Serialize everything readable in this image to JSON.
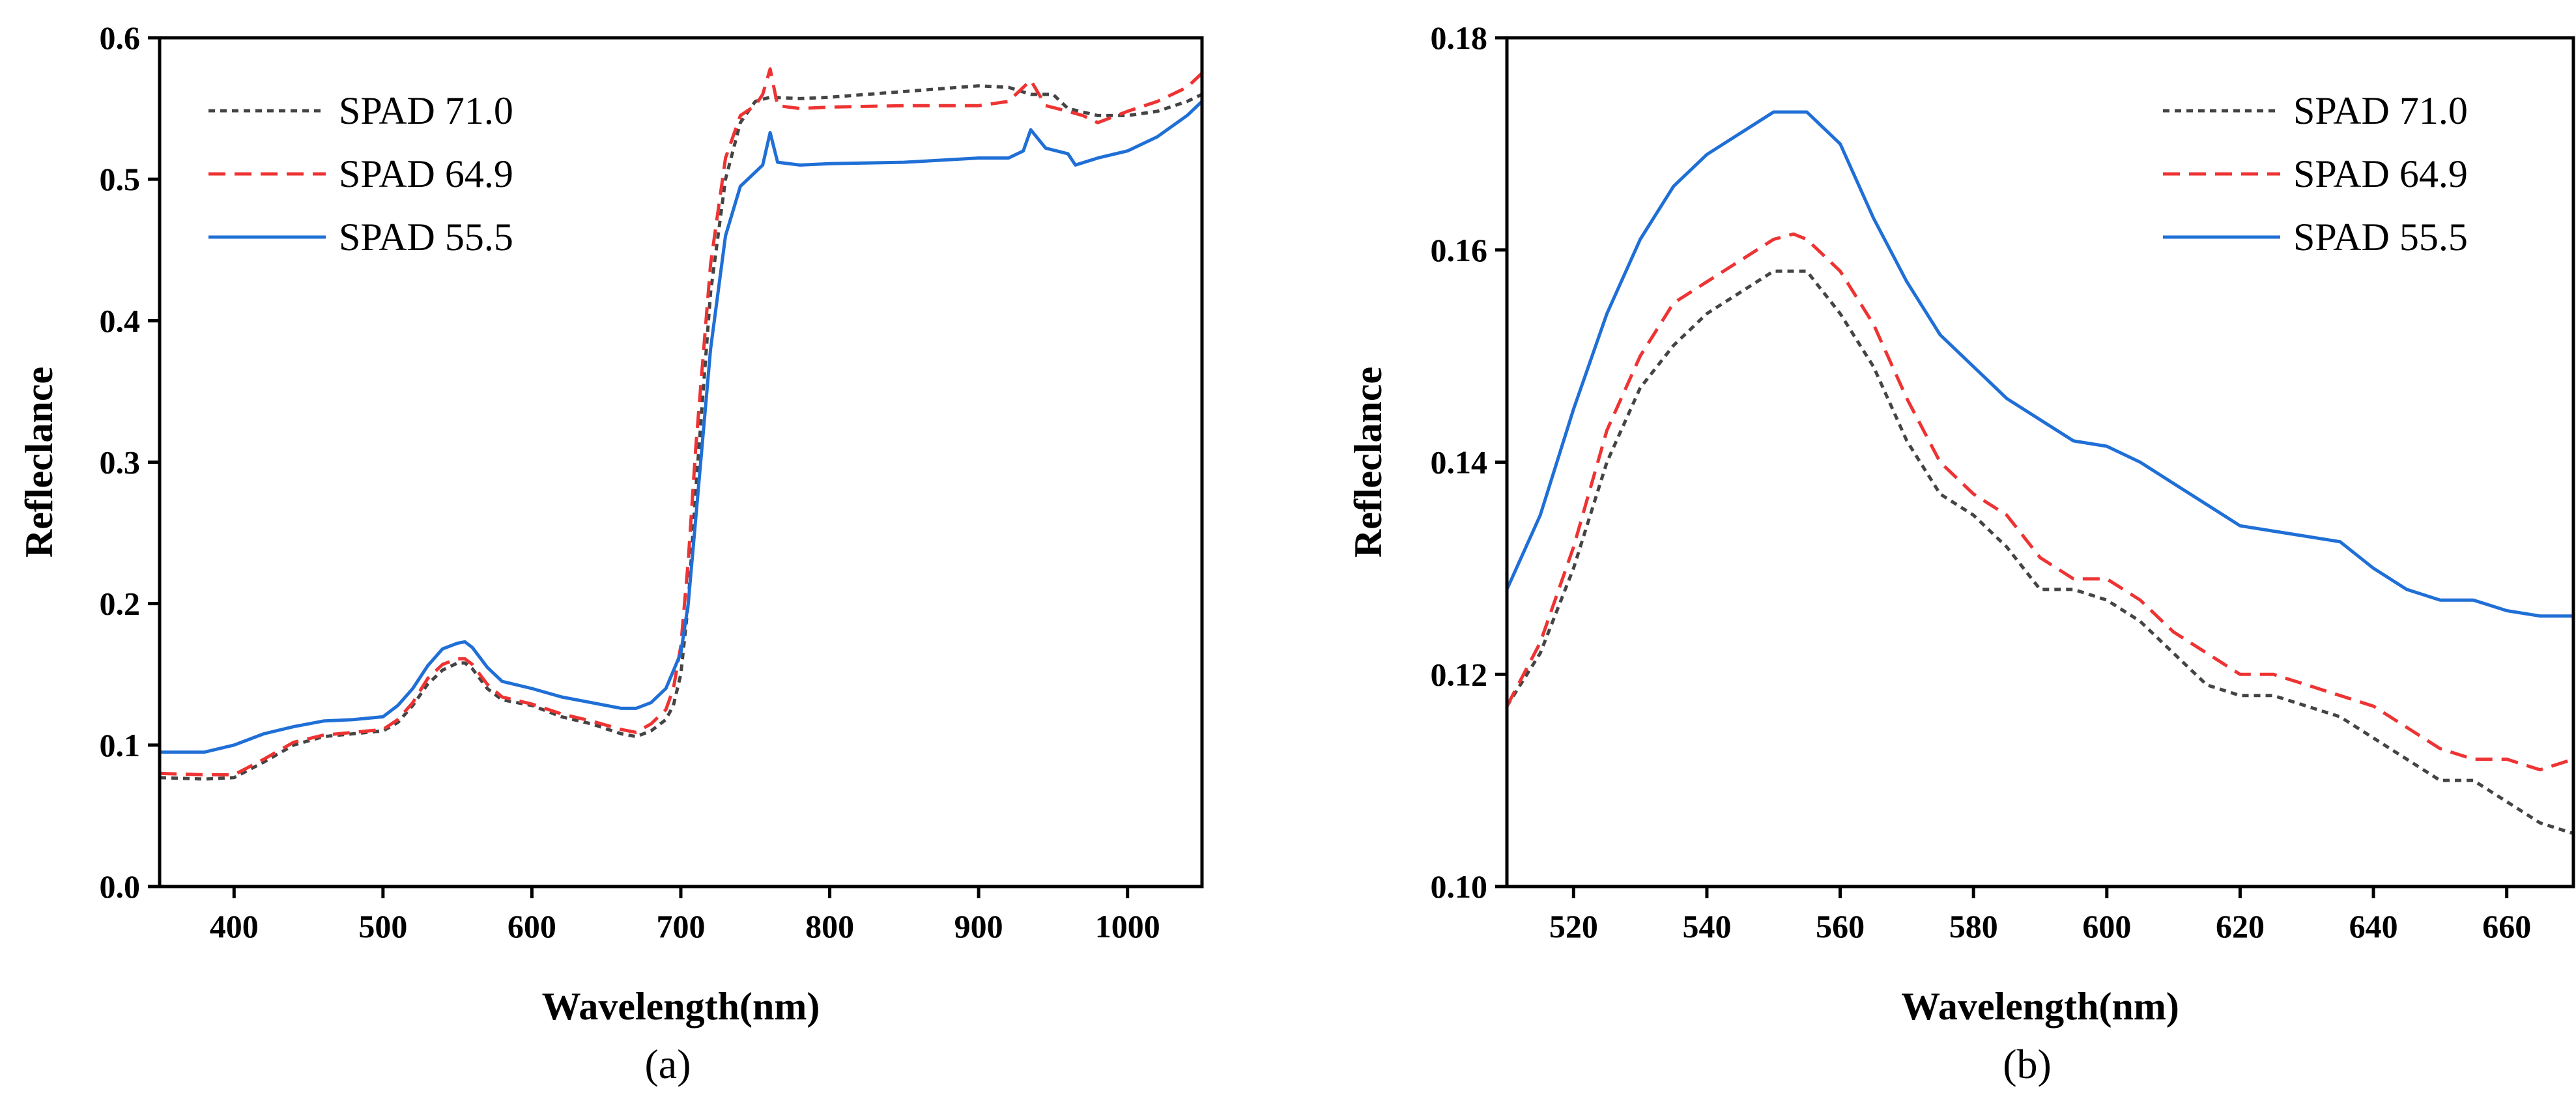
{
  "chart_data": [
    {
      "type": "line",
      "panel_label": "(a)",
      "xlabel": "Wavelength(nm)",
      "ylabel": "Refleclance",
      "xlim": [
        350,
        1050
      ],
      "ylim": [
        0.0,
        0.6
      ],
      "xticks": [
        400,
        500,
        600,
        700,
        800,
        900,
        1000
      ],
      "yticks": [
        "0.0",
        "0.1",
        "0.2",
        "0.3",
        "0.4",
        "0.5",
        "0.6"
      ],
      "legend_position": "top-left",
      "series": [
        {
          "name": "SPAD 71.0",
          "color": "#444444",
          "style": "dotted",
          "x": [
            350,
            380,
            400,
            420,
            440,
            460,
            480,
            500,
            510,
            520,
            530,
            540,
            550,
            555,
            560,
            570,
            580,
            600,
            620,
            640,
            660,
            670,
            680,
            690,
            695,
            700,
            705,
            710,
            720,
            730,
            740,
            750,
            760,
            780,
            800,
            850,
            900,
            920,
            935,
            950,
            960,
            980,
            1000,
            1020,
            1040,
            1050
          ],
          "y": [
            0.077,
            0.076,
            0.077,
            0.088,
            0.1,
            0.106,
            0.108,
            0.11,
            0.116,
            0.128,
            0.143,
            0.153,
            0.158,
            0.158,
            0.154,
            0.14,
            0.132,
            0.128,
            0.12,
            0.115,
            0.108,
            0.106,
            0.11,
            0.118,
            0.128,
            0.15,
            0.2,
            0.28,
            0.42,
            0.5,
            0.54,
            0.555,
            0.558,
            0.557,
            0.558,
            0.562,
            0.566,
            0.565,
            0.56,
            0.56,
            0.55,
            0.545,
            0.545,
            0.548,
            0.555,
            0.56
          ]
        },
        {
          "name": "SPAD 64.9",
          "color": "#ee3333",
          "style": "dashed",
          "x": [
            350,
            380,
            400,
            420,
            440,
            460,
            480,
            500,
            510,
            520,
            530,
            540,
            550,
            555,
            560,
            570,
            580,
            600,
            620,
            640,
            660,
            670,
            680,
            690,
            695,
            700,
            705,
            710,
            720,
            730,
            740,
            750,
            755,
            760,
            765,
            780,
            800,
            850,
            900,
            920,
            935,
            945,
            960,
            970,
            980,
            1000,
            1020,
            1040,
            1050
          ],
          "y": [
            0.08,
            0.079,
            0.079,
            0.09,
            0.102,
            0.107,
            0.109,
            0.111,
            0.118,
            0.13,
            0.147,
            0.157,
            0.161,
            0.161,
            0.157,
            0.143,
            0.134,
            0.129,
            0.122,
            0.117,
            0.111,
            0.109,
            0.115,
            0.125,
            0.14,
            0.17,
            0.23,
            0.31,
            0.44,
            0.515,
            0.545,
            0.552,
            0.56,
            0.578,
            0.552,
            0.55,
            0.551,
            0.552,
            0.552,
            0.555,
            0.57,
            0.552,
            0.548,
            0.545,
            0.54,
            0.548,
            0.555,
            0.565,
            0.575
          ]
        },
        {
          "name": "SPAD 55.5",
          "color": "#1f6fd6",
          "style": "solid",
          "x": [
            350,
            380,
            400,
            420,
            440,
            460,
            480,
            500,
            510,
            520,
            530,
            540,
            550,
            555,
            560,
            570,
            580,
            600,
            620,
            640,
            660,
            670,
            680,
            690,
            700,
            705,
            710,
            720,
            730,
            740,
            750,
            755,
            760,
            765,
            780,
            800,
            850,
            900,
            920,
            930,
            935,
            945,
            960,
            965,
            980,
            1000,
            1020,
            1040,
            1050
          ],
          "y": [
            0.095,
            0.095,
            0.1,
            0.108,
            0.113,
            0.117,
            0.118,
            0.12,
            0.128,
            0.14,
            0.156,
            0.168,
            0.172,
            0.173,
            0.169,
            0.155,
            0.145,
            0.14,
            0.134,
            0.13,
            0.126,
            0.126,
            0.13,
            0.14,
            0.165,
            0.2,
            0.26,
            0.38,
            0.46,
            0.495,
            0.505,
            0.51,
            0.533,
            0.512,
            0.51,
            0.511,
            0.512,
            0.515,
            0.515,
            0.52,
            0.535,
            0.522,
            0.518,
            0.51,
            0.515,
            0.52,
            0.53,
            0.545,
            0.555
          ]
        }
      ]
    },
    {
      "type": "line",
      "panel_label": "(b)",
      "xlabel": "Wavelength(nm)",
      "ylabel": "Refleclance",
      "xlim": [
        510,
        670
      ],
      "ylim": [
        0.1,
        0.18
      ],
      "xticks": [
        520,
        540,
        560,
        580,
        600,
        620,
        640,
        660
      ],
      "yticks": [
        "0.10",
        "0.12",
        "0.14",
        "0.16",
        "0.18"
      ],
      "legend_position": "top-right",
      "series": [
        {
          "name": "SPAD 71.0",
          "color": "#444444",
          "style": "dotted",
          "x": [
            510,
            515,
            520,
            525,
            530,
            535,
            540,
            545,
            550,
            553,
            555,
            560,
            565,
            570,
            575,
            580,
            585,
            590,
            595,
            600,
            605,
            610,
            615,
            620,
            625,
            630,
            635,
            640,
            645,
            650,
            655,
            660,
            665,
            670
          ],
          "y": [
            0.117,
            0.122,
            0.13,
            0.14,
            0.147,
            0.151,
            0.154,
            0.156,
            0.158,
            0.158,
            0.158,
            0.154,
            0.149,
            0.142,
            0.137,
            0.135,
            0.132,
            0.128,
            0.128,
            0.127,
            0.125,
            0.122,
            0.119,
            0.118,
            0.118,
            0.117,
            0.116,
            0.114,
            0.112,
            0.11,
            0.11,
            0.108,
            0.106,
            0.105
          ]
        },
        {
          "name": "SPAD 64.9",
          "color": "#ee3333",
          "style": "dashed",
          "x": [
            510,
            515,
            520,
            525,
            530,
            535,
            540,
            545,
            550,
            553,
            555,
            560,
            565,
            570,
            575,
            580,
            585,
            590,
            595,
            600,
            605,
            610,
            615,
            620,
            625,
            630,
            635,
            640,
            645,
            650,
            655,
            660,
            665,
            670
          ],
          "y": [
            0.117,
            0.123,
            0.132,
            0.143,
            0.15,
            0.155,
            0.157,
            0.159,
            0.161,
            0.1615,
            0.161,
            0.158,
            0.153,
            0.146,
            0.14,
            0.137,
            0.135,
            0.131,
            0.129,
            0.129,
            0.127,
            0.124,
            0.122,
            0.12,
            0.12,
            0.119,
            0.118,
            0.117,
            0.115,
            0.113,
            0.112,
            0.112,
            0.111,
            0.112
          ]
        },
        {
          "name": "SPAD 55.5",
          "color": "#1f6fd6",
          "style": "solid",
          "x": [
            510,
            515,
            520,
            525,
            530,
            535,
            540,
            545,
            550,
            555,
            560,
            565,
            570,
            575,
            580,
            585,
            590,
            595,
            600,
            605,
            610,
            615,
            620,
            625,
            630,
            635,
            640,
            645,
            650,
            655,
            660,
            665,
            670
          ],
          "y": [
            0.128,
            0.135,
            0.145,
            0.154,
            0.161,
            0.166,
            0.169,
            0.171,
            0.173,
            0.173,
            0.17,
            0.163,
            0.157,
            0.152,
            0.149,
            0.146,
            0.144,
            0.142,
            0.1415,
            0.14,
            0.138,
            0.136,
            0.134,
            0.1335,
            0.133,
            0.1325,
            0.13,
            0.128,
            0.127,
            0.127,
            0.126,
            0.1255,
            0.1255
          ]
        }
      ]
    }
  ]
}
